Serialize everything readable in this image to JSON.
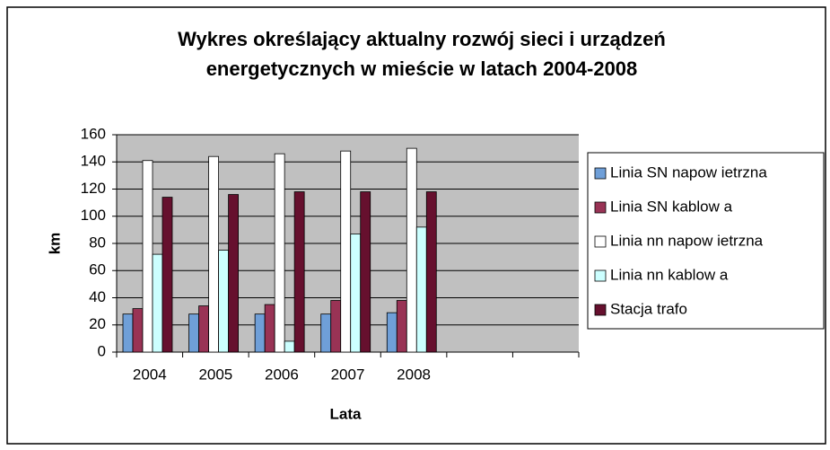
{
  "chart_data": {
    "type": "bar",
    "title": [
      "Wykres określający aktualny rozwój sieci i urządzeń",
      "energetycznych w mieście w latach 2004-2008"
    ],
    "x_label": "Lata",
    "y_label": "km",
    "categories": [
      "2004",
      "2005",
      "2006",
      "2007",
      "2008",
      null,
      null
    ],
    "series": [
      {
        "name": "Linia SN napow ietrzna",
        "color": "#6f9fd8",
        "values": [
          28,
          28,
          28,
          28,
          29,
          null,
          null
        ]
      },
      {
        "name": "Linia SN kablow a",
        "color": "#993355",
        "values": [
          32,
          34,
          35,
          38,
          38,
          null,
          null
        ]
      },
      {
        "name": "Linia nn napow ietrzna",
        "color": "#ffffff",
        "values": [
          141,
          144,
          146,
          148,
          150,
          null,
          null
        ]
      },
      {
        "name": "Linia nn kablow a",
        "color": "#ccffff",
        "values": [
          72,
          75,
          8,
          87,
          92,
          null,
          null
        ]
      },
      {
        "name": "Stacja trafo",
        "color": "#66102e",
        "values": [
          114,
          116,
          118,
          118,
          118,
          null,
          null
        ]
      }
    ],
    "ylim": [
      0,
      160
    ],
    "yticks": [
      0,
      20,
      40,
      60,
      80,
      100,
      120,
      140,
      160
    ],
    "grid": true,
    "legend": "right"
  }
}
